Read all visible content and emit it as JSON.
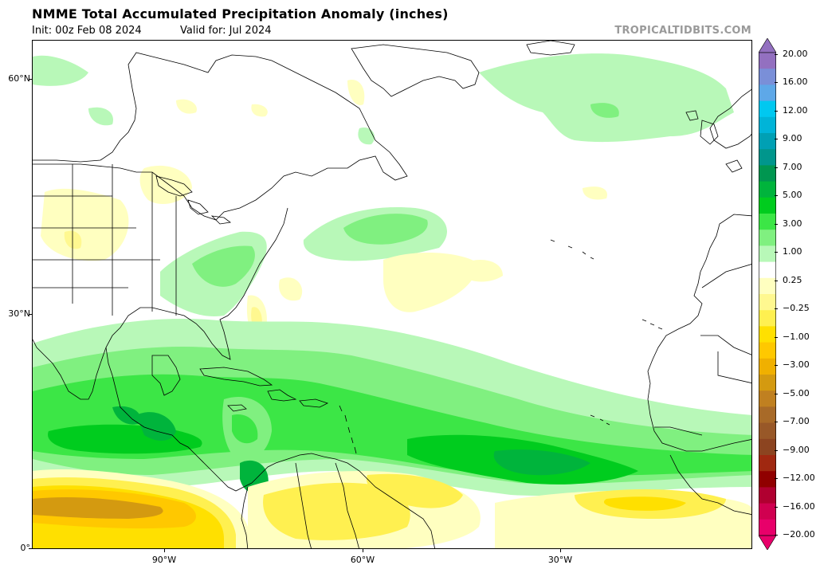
{
  "header": {
    "title": "NMME Total Accumulated Precipitation Anomaly (inches)",
    "init": "Init: 00z Feb 08 2024",
    "valid": "Valid for: Jul 2024",
    "brand": "TROPICALTIDBITS.COM"
  },
  "map": {
    "lat_labels": [
      "60°N",
      "30°N",
      "0°"
    ],
    "lon_labels": [
      "90°W",
      "60°W",
      "30°W"
    ],
    "lat_range": [
      0,
      65
    ],
    "lon_range": [
      -108,
      1
    ]
  },
  "colorbar": {
    "labels": [
      "20.00",
      "16.00",
      "12.00",
      "9.00",
      "7.00",
      "5.00",
      "3.00",
      "1.00",
      "0.25",
      "−0.25",
      "−1.00",
      "−3.00",
      "−5.00",
      "−7.00",
      "−9.00",
      "−12.00",
      "−16.00",
      "−20.00"
    ],
    "colors": [
      "#9370c0",
      "#7a8fd8",
      "#5ea8e8",
      "#00c8f0",
      "#00b4d8",
      "#00a0b4",
      "#00968c",
      "#009650",
      "#00b43c",
      "#00cc1e",
      "#3ce646",
      "#80f080",
      "#b8f8b8",
      "#ffffff",
      "#ffffc0",
      "#fff890",
      "#fff050",
      "#ffe000",
      "#ffc800",
      "#f0b000",
      "#d49a10",
      "#c08020",
      "#a86a28",
      "#985828",
      "#8c4420",
      "#a02810",
      "#900000",
      "#b00030",
      "#d00050",
      "#e8006a"
    ]
  },
  "colors": {
    "land_outline": "#000000",
    "green_light": "#b8f8b8",
    "green_mid": "#80f080",
    "green": "#3ce646",
    "green_dark": "#00cc1e",
    "green_deep": "#00b43c",
    "teal": "#00968c",
    "yellow_light": "#ffffc0",
    "yellow": "#fff050",
    "gold": "#ffe000",
    "orange": "#ffc800",
    "brown": "#d49a10"
  }
}
